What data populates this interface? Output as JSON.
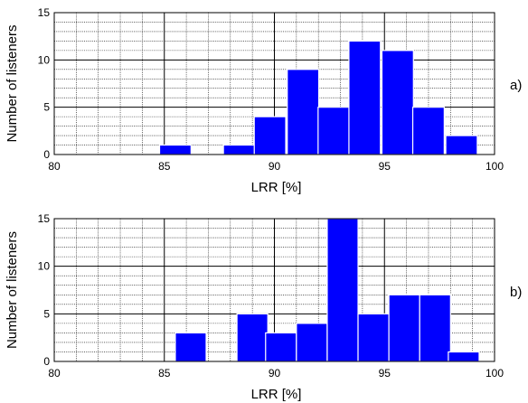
{
  "chart_data": [
    {
      "type": "bar",
      "panel_label": "a)",
      "xlabel": "LRR [%]",
      "ylabel": "Number of listeners",
      "xlim": [
        80,
        100
      ],
      "ylim": [
        0,
        15
      ],
      "xticks": [
        80,
        85,
        90,
        95,
        100
      ],
      "yticks": [
        0,
        5,
        10,
        15
      ],
      "grid": true,
      "bin_width": 1.43,
      "bins": [
        {
          "center": 85.5,
          "count": 1
        },
        {
          "center": 88.4,
          "count": 1
        },
        {
          "center": 89.8,
          "count": 4
        },
        {
          "center": 91.3,
          "count": 9
        },
        {
          "center": 92.7,
          "count": 5
        },
        {
          "center": 94.1,
          "count": 12
        },
        {
          "center": 95.6,
          "count": 11
        },
        {
          "center": 97.0,
          "count": 5
        },
        {
          "center": 98.5,
          "count": 2
        }
      ]
    },
    {
      "type": "bar",
      "panel_label": "b)",
      "xlabel": "LRR [%]",
      "ylabel": "Number of listeners",
      "xlim": [
        80,
        100
      ],
      "ylim": [
        0,
        15
      ],
      "xticks": [
        80,
        85,
        90,
        95,
        100
      ],
      "yticks": [
        0,
        5,
        10,
        15
      ],
      "grid": true,
      "bin_width": 1.4,
      "bins": [
        {
          "center": 86.2,
          "count": 3
        },
        {
          "center": 89.0,
          "count": 5
        },
        {
          "center": 90.3,
          "count": 3
        },
        {
          "center": 91.7,
          "count": 4
        },
        {
          "center": 93.1,
          "count": 15
        },
        {
          "center": 94.5,
          "count": 5
        },
        {
          "center": 95.9,
          "count": 7
        },
        {
          "center": 97.3,
          "count": 7
        },
        {
          "center": 98.6,
          "count": 1
        }
      ]
    }
  ],
  "colors": {
    "bar_fill": "#0000ff",
    "bar_edge": "#ffffff",
    "grid": "#000000",
    "frame": "#000000"
  }
}
